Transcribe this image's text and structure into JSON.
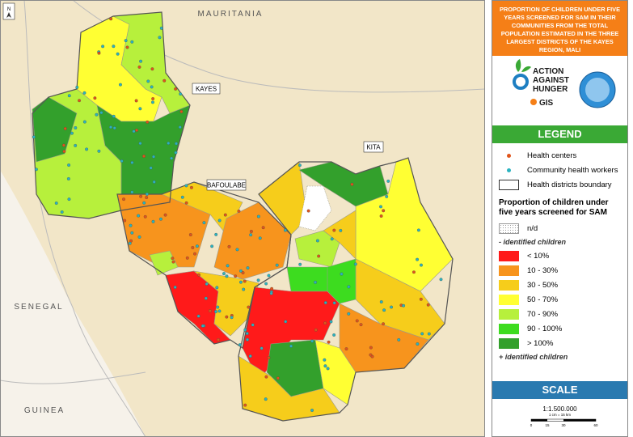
{
  "map": {
    "countries": [
      "MAURITANIA",
      "SENEGAL",
      "GUINEA"
    ],
    "districts": [
      "KAYES",
      "BAFOULABE",
      "KITA"
    ],
    "north": "N"
  },
  "panel": {
    "title": "PROPORTION OF CHILDREN UNDER FIVE YEARS SCREENED FOR SAM IN THEIR COMMUNITIES FROM THE TOTAL POPULATION ESTIMATED IN THE THREE LARGEST DISTRICTS OF THE KAYES REGION, MALI",
    "logo": {
      "org": [
        "ACTION",
        "AGAINST",
        "HUNGER"
      ],
      "gis": "GIS"
    },
    "legend": {
      "header": "LEGEND",
      "symbols": [
        "Health centers",
        "Community health workers",
        "Health districts boundary"
      ],
      "heading": "Proportion of children under five years screened for SAM",
      "nd": "n/d",
      "minus": "- identified children",
      "classes": [
        {
          "label": "< 10%",
          "color": "#ff1a1a"
        },
        {
          "label": "10 - 30%",
          "color": "#f7941d"
        },
        {
          "label": "30 - 50%",
          "color": "#f6cd1b"
        },
        {
          "label": "50 - 70%",
          "color": "#ffff33"
        },
        {
          "label": "70 - 90%",
          "color": "#b7f03c"
        },
        {
          "label": "90 - 100%",
          "color": "#3ddc1f"
        },
        {
          "label": "> 100%",
          "color": "#33a02c"
        }
      ],
      "plus": "+ identified children"
    },
    "scale": {
      "header": "SCALE",
      "ratio": "1:1.500.000",
      "equivalence": "1 cm = 15 km",
      "ticks": [
        "0",
        "15",
        "30",
        "60"
      ]
    }
  }
}
